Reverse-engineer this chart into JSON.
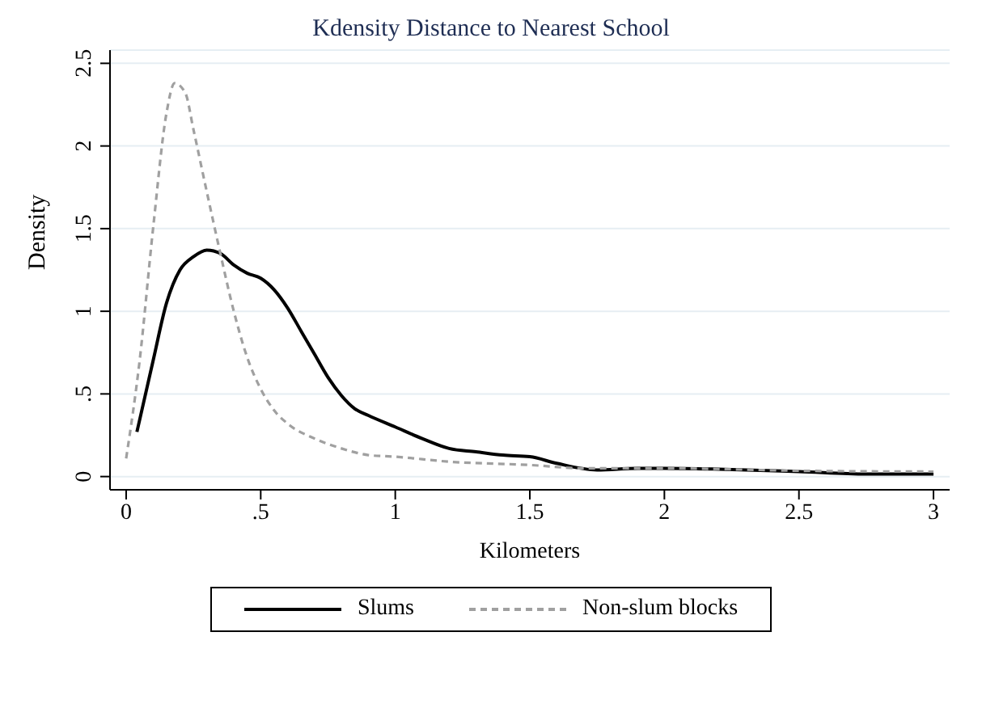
{
  "chart_data": {
    "type": "line",
    "title": "Kdensity Distance to Nearest School",
    "xlabel": "Kilometers",
    "ylabel": "Density",
    "xlim": [
      -0.06,
      3.06
    ],
    "ylim": [
      -0.08,
      2.58
    ],
    "xticks": [
      0,
      {
        "value": 0.5,
        "label": ".5"
      },
      1,
      1.5,
      2,
      2.5,
      3
    ],
    "yticks": [
      0,
      {
        "value": 0.5,
        "label": ".5"
      },
      1,
      1.5,
      2,
      2.5
    ],
    "grid": "y",
    "legend": "bottom",
    "series": [
      {
        "name": "Slums",
        "color": "#000000",
        "line_style": "solid",
        "x": [
          0.04,
          0.1,
          0.15,
          0.2,
          0.25,
          0.3,
          0.35,
          0.4,
          0.45,
          0.5,
          0.55,
          0.6,
          0.65,
          0.7,
          0.75,
          0.8,
          0.85,
          0.9,
          1.0,
          1.1,
          1.2,
          1.3,
          1.4,
          1.5,
          1.6,
          1.75,
          1.9,
          2.0,
          2.2,
          2.5,
          2.75,
          3.0
        ],
        "values": [
          0.27,
          0.7,
          1.05,
          1.25,
          1.33,
          1.37,
          1.35,
          1.28,
          1.23,
          1.2,
          1.13,
          1.02,
          0.88,
          0.74,
          0.6,
          0.49,
          0.41,
          0.37,
          0.3,
          0.23,
          0.17,
          0.15,
          0.13,
          0.12,
          0.08,
          0.04,
          0.05,
          0.05,
          0.045,
          0.03,
          0.015,
          0.015
        ]
      },
      {
        "name": "Non-slum blocks",
        "color": "#a0a0a0",
        "line_style": "dashed",
        "x": [
          0.0,
          0.05,
          0.1,
          0.15,
          0.18,
          0.22,
          0.25,
          0.3,
          0.35,
          0.4,
          0.45,
          0.5,
          0.55,
          0.6,
          0.7,
          0.8,
          0.9,
          1.0,
          1.2,
          1.5,
          1.7,
          2.0,
          2.5,
          3.0
        ],
        "values": [
          0.11,
          0.7,
          1.5,
          2.2,
          2.38,
          2.32,
          2.1,
          1.72,
          1.35,
          1.0,
          0.72,
          0.53,
          0.4,
          0.32,
          0.23,
          0.17,
          0.13,
          0.12,
          0.09,
          0.07,
          0.05,
          0.05,
          0.035,
          0.03
        ]
      }
    ]
  }
}
